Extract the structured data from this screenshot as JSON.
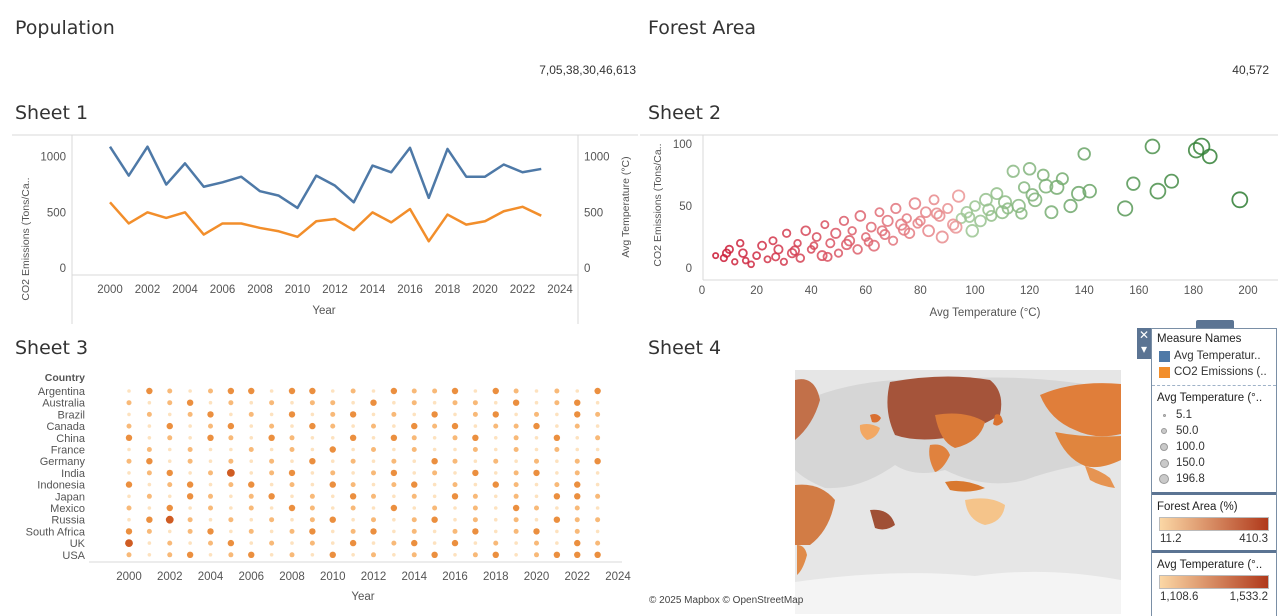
{
  "kpis": [
    {
      "title": "Population",
      "value": "7,05,38,30,46,613"
    },
    {
      "title": "Forest Area",
      "value": "40,572"
    }
  ],
  "sheets": {
    "sheet1": "Sheet 1",
    "sheet2": "Sheet 2",
    "sheet3": "Sheet 3",
    "sheet4": "Sheet 4"
  },
  "colors": {
    "temperature": "#4e79a7",
    "co2": "#f28e2b",
    "scatter_low": "#c8102e",
    "scatter_high": "#2e7d32",
    "heat_low": "#fbd7a5",
    "heat_high": "#b0391b"
  },
  "chart_data": [
    {
      "type": "line",
      "name": "sheet1",
      "x": [
        2000,
        2001,
        2002,
        2003,
        2004,
        2005,
        2006,
        2007,
        2008,
        2009,
        2010,
        2011,
        2012,
        2013,
        2014,
        2015,
        2016,
        2017,
        2018,
        2019,
        2020,
        2021,
        2022,
        2023
      ],
      "series": [
        {
          "name": "Avg Temperature (°C)",
          "axis": "right",
          "values": [
            1090,
            830,
            1090,
            750,
            940,
            730,
            770,
            820,
            690,
            650,
            540,
            830,
            740,
            590,
            920,
            860,
            1080,
            630,
            1070,
            820,
            820,
            930,
            860,
            890
          ]
        },
        {
          "name": "CO2 Emissions (Tons/Ca..)",
          "axis": "left",
          "values": [
            590,
            400,
            500,
            450,
            500,
            300,
            400,
            400,
            360,
            330,
            280,
            420,
            440,
            340,
            500,
            410,
            530,
            240,
            480,
            390,
            420,
            510,
            550,
            470
          ]
        }
      ],
      "xlabel": "Year",
      "ylabel": "CO2 Emissions (Tons/Ca..",
      "y2label": "Avg Temperature (°C)",
      "xticks": [
        "2000",
        "2002",
        "2004",
        "2006",
        "2008",
        "2010",
        "2012",
        "2014",
        "2016",
        "2018",
        "2020",
        "2022",
        "2024"
      ],
      "yticks": [
        "0",
        "500",
        "1000"
      ],
      "y2ticks": [
        "0",
        "500",
        "1000"
      ],
      "ylim": [
        0,
        1150
      ]
    },
    {
      "type": "scatter",
      "name": "sheet2",
      "xlabel": "Avg Temperature (°C)",
      "ylabel": "CO2 Emissions (Tons/Ca..",
      "xticks": [
        "0",
        "20",
        "40",
        "60",
        "80",
        "100",
        "120",
        "140",
        "160",
        "180",
        "200"
      ],
      "yticks": [
        "0",
        "50",
        "100"
      ],
      "xlim": [
        0,
        205
      ],
      "ylim": [
        0,
        105
      ],
      "points": [
        [
          5,
          10
        ],
        [
          8,
          8
        ],
        [
          10,
          15
        ],
        [
          12,
          5
        ],
        [
          14,
          20
        ],
        [
          15,
          12
        ],
        [
          18,
          3
        ],
        [
          20,
          10
        ],
        [
          22,
          18
        ],
        [
          24,
          7
        ],
        [
          26,
          22
        ],
        [
          28,
          15
        ],
        [
          30,
          5
        ],
        [
          31,
          28
        ],
        [
          33,
          12
        ],
        [
          35,
          20
        ],
        [
          36,
          8
        ],
        [
          38,
          30
        ],
        [
          40,
          15
        ],
        [
          42,
          25
        ],
        [
          44,
          10
        ],
        [
          45,
          35
        ],
        [
          47,
          20
        ],
        [
          49,
          28
        ],
        [
          50,
          12
        ],
        [
          52,
          38
        ],
        [
          54,
          22
        ],
        [
          55,
          30
        ],
        [
          57,
          15
        ],
        [
          58,
          42
        ],
        [
          60,
          25
        ],
        [
          62,
          33
        ],
        [
          63,
          18
        ],
        [
          65,
          45
        ],
        [
          66,
          30
        ],
        [
          68,
          38
        ],
        [
          70,
          22
        ],
        [
          71,
          48
        ],
        [
          73,
          35
        ],
        [
          75,
          40
        ],
        [
          76,
          28
        ],
        [
          78,
          52
        ],
        [
          80,
          38
        ],
        [
          82,
          45
        ],
        [
          83,
          30
        ],
        [
          85,
          55
        ],
        [
          87,
          42
        ],
        [
          88,
          25
        ],
        [
          90,
          48
        ],
        [
          92,
          35
        ],
        [
          94,
          58
        ],
        [
          95,
          40
        ],
        [
          97,
          45
        ],
        [
          99,
          30
        ],
        [
          100,
          50
        ],
        [
          102,
          38
        ],
        [
          104,
          55
        ],
        [
          106,
          42
        ],
        [
          108,
          60
        ],
        [
          110,
          45
        ],
        [
          112,
          48
        ],
        [
          114,
          78
        ],
        [
          116,
          50
        ],
        [
          118,
          65
        ],
        [
          120,
          80
        ],
        [
          122,
          55
        ],
        [
          125,
          75
        ],
        [
          128,
          45
        ],
        [
          130,
          65
        ],
        [
          132,
          72
        ],
        [
          135,
          50
        ],
        [
          138,
          60
        ],
        [
          140,
          92
        ],
        [
          142,
          62
        ],
        [
          155,
          48
        ],
        [
          158,
          68
        ],
        [
          165,
          98
        ],
        [
          167,
          62
        ],
        [
          172,
          70
        ],
        [
          181,
          95
        ],
        [
          183,
          98
        ],
        [
          186,
          90
        ],
        [
          197,
          55
        ],
        [
          9,
          12
        ],
        [
          16,
          6
        ],
        [
          27,
          9
        ],
        [
          34,
          14
        ],
        [
          41,
          18
        ],
        [
          46,
          9
        ],
        [
          53,
          19
        ],
        [
          61,
          21
        ],
        [
          67,
          27
        ],
        [
          74,
          31
        ],
        [
          79,
          36
        ],
        [
          86,
          44
        ],
        [
          93,
          33
        ],
        [
          98,
          41
        ],
        [
          105,
          47
        ],
        [
          111,
          53
        ],
        [
          117,
          44
        ],
        [
          121,
          59
        ],
        [
          126,
          66
        ]
      ]
    },
    {
      "type": "heatmap",
      "name": "sheet3",
      "rows_header": "Country",
      "rows": [
        "Argentina",
        "Australia",
        "Brazil",
        "Canada",
        "China",
        "France",
        "Germany",
        "India",
        "Indonesia",
        "Japan",
        "Mexico",
        "Russia",
        "South Africa",
        "UK",
        "USA"
      ],
      "x": [
        2000,
        2001,
        2002,
        2003,
        2004,
        2005,
        2006,
        2007,
        2008,
        2009,
        2010,
        2011,
        2012,
        2013,
        2014,
        2015,
        2016,
        2017,
        2018,
        2019,
        2020,
        2021,
        2022,
        2023
      ],
      "xticks": [
        "2000",
        "2002",
        "2004",
        "2006",
        "2008",
        "2010",
        "2012",
        "2014",
        "2016",
        "2018",
        "2020",
        "2022",
        "2024"
      ],
      "xlabel": "Year",
      "values": [
        [
          1,
          3,
          2,
          1,
          2,
          3,
          3,
          1,
          3,
          3,
          1,
          2,
          1,
          3,
          2,
          2,
          3,
          1,
          3,
          2,
          1,
          2,
          1,
          3
        ],
        [
          2,
          1,
          2,
          3,
          1,
          2,
          1,
          2,
          1,
          2,
          2,
          1,
          3,
          1,
          2,
          1,
          2,
          2,
          1,
          3,
          1,
          2,
          3,
          1
        ],
        [
          1,
          2,
          1,
          2,
          3,
          1,
          2,
          1,
          3,
          1,
          2,
          3,
          1,
          2,
          1,
          3,
          1,
          2,
          3,
          1,
          2,
          1,
          3,
          2
        ],
        [
          2,
          1,
          3,
          1,
          2,
          3,
          1,
          2,
          1,
          3,
          2,
          1,
          2,
          1,
          3,
          2,
          3,
          1,
          2,
          2,
          3,
          1,
          2,
          1
        ],
        [
          3,
          1,
          2,
          1,
          3,
          2,
          1,
          3,
          2,
          1,
          1,
          3,
          1,
          3,
          2,
          1,
          2,
          3,
          1,
          2,
          1,
          3,
          1,
          2
        ],
        [
          1,
          2,
          1,
          2,
          1,
          1,
          2,
          1,
          2,
          1,
          3,
          1,
          2,
          1,
          2,
          1,
          1,
          2,
          1,
          2,
          1,
          2,
          1,
          1
        ],
        [
          2,
          3,
          1,
          2,
          1,
          2,
          1,
          2,
          1,
          3,
          1,
          2,
          1,
          2,
          1,
          3,
          2,
          1,
          2,
          1,
          2,
          1,
          2,
          3
        ],
        [
          1,
          2,
          3,
          1,
          2,
          4,
          1,
          2,
          3,
          1,
          2,
          1,
          2,
          3,
          1,
          2,
          1,
          3,
          1,
          2,
          3,
          1,
          2,
          1
        ],
        [
          3,
          1,
          2,
          3,
          1,
          2,
          3,
          1,
          2,
          1,
          3,
          2,
          1,
          2,
          3,
          1,
          2,
          1,
          3,
          2,
          1,
          2,
          3,
          1
        ],
        [
          1,
          2,
          1,
          3,
          2,
          1,
          2,
          3,
          1,
          2,
          1,
          3,
          2,
          1,
          2,
          1,
          3,
          2,
          1,
          2,
          1,
          3,
          3,
          2
        ],
        [
          2,
          1,
          3,
          1,
          2,
          1,
          2,
          1,
          3,
          2,
          1,
          2,
          1,
          3,
          1,
          2,
          1,
          2,
          1,
          3,
          2,
          1,
          2,
          1
        ],
        [
          1,
          3,
          4,
          2,
          1,
          2,
          1,
          2,
          1,
          2,
          3,
          1,
          2,
          1,
          2,
          3,
          1,
          2,
          1,
          2,
          1,
          3,
          2,
          2
        ],
        [
          3,
          2,
          1,
          2,
          3,
          1,
          2,
          1,
          2,
          3,
          1,
          2,
          3,
          1,
          2,
          1,
          2,
          3,
          1,
          2,
          3,
          1,
          2,
          1
        ],
        [
          4,
          1,
          2,
          1,
          2,
          3,
          1,
          2,
          1,
          2,
          1,
          3,
          1,
          2,
          3,
          1,
          3,
          1,
          2,
          1,
          2,
          1,
          3,
          2
        ],
        [
          2,
          1,
          2,
          3,
          1,
          2,
          3,
          1,
          2,
          1,
          3,
          1,
          2,
          1,
          2,
          3,
          1,
          2,
          3,
          1,
          2,
          3,
          3,
          3
        ]
      ]
    }
  ],
  "legend": {
    "measure_names": {
      "title": "Measure Names",
      "items": [
        "Avg Temperatur..",
        "CO2 Emissions (.."
      ]
    },
    "size": {
      "title": "Avg Temperature (°..",
      "items": [
        "5.1",
        "50.0",
        "100.0",
        "150.0",
        "196.8"
      ]
    },
    "forest": {
      "title": "Forest Area (%)",
      "min": "11.2",
      "max": "410.3"
    },
    "temp": {
      "title": "Avg Temperature (°..",
      "min": "1,108.6",
      "max": "1,533.2"
    }
  },
  "map": {
    "attribution": "© 2025 Mapbox © OpenStreetMap"
  }
}
